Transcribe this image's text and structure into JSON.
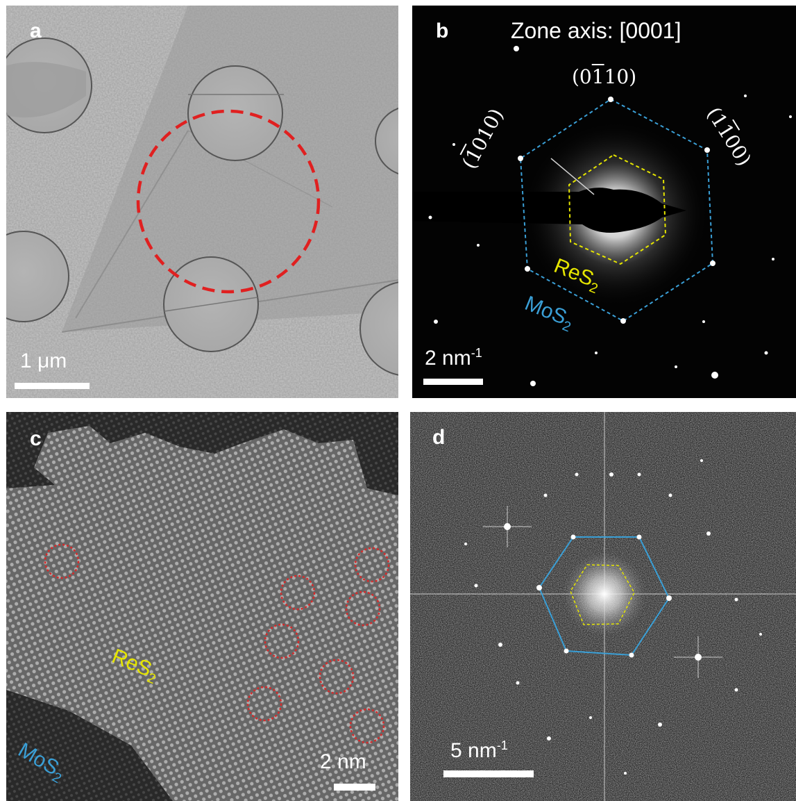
{
  "panels": {
    "a": {
      "label": "a",
      "scale_bar": "1 μm"
    },
    "b": {
      "label": "b",
      "zone_axis": "Zone axis: [0001]",
      "spot_top": {
        "pre": "(0",
        "ov": "1",
        "post": "10)"
      },
      "spot_left": {
        "pre": "(",
        "ov": "1",
        "post": "010)"
      },
      "spot_right": {
        "pre": "(1",
        "ov": "1",
        "post": "00)"
      },
      "material_res2": {
        "base": "ReS",
        "sub": "2"
      },
      "material_mos2": {
        "base": "MoS",
        "sub": "2"
      },
      "scale_bar": {
        "base": "2 nm",
        "sup": "-1"
      }
    },
    "c": {
      "label": "c",
      "material_res2": {
        "base": "ReS",
        "sub": "2"
      },
      "material_mos2": {
        "base": "MoS",
        "sub": "2"
      },
      "scale_bar": "2 nm"
    },
    "d": {
      "label": "d",
      "scale_bar": {
        "base": "5 nm",
        "sup": "-1"
      }
    }
  },
  "colors": {
    "mos2_outline": "#3a9fd6",
    "res2_outline": "#e5e500",
    "highlight_circle": "#e02020",
    "defect_circle": "#d42b2b"
  }
}
